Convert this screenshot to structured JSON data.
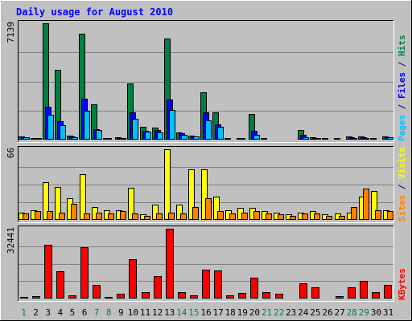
{
  "chart_data": {
    "type": "bar",
    "title": "Daily usage for August 2010",
    "categories": [
      "1",
      "2",
      "3",
      "4",
      "5",
      "6",
      "7",
      "8",
      "9",
      "10",
      "11",
      "12",
      "13",
      "14",
      "15",
      "16",
      "17",
      "18",
      "19",
      "20",
      "21",
      "22",
      "23",
      "24",
      "25",
      "26",
      "27",
      "28",
      "29",
      "30",
      "31"
    ],
    "weekend_days": [
      "1",
      "7",
      "8",
      "14",
      "15",
      "21",
      "22",
      "28",
      "29"
    ],
    "panels": [
      {
        "id": "hits-files-pages",
        "max_label": "7139",
        "ymax": 7139,
        "side_label": [
          {
            "text": "Pages",
            "color": "#00c0ff"
          },
          {
            "text": " / ",
            "color": "#000080"
          },
          {
            "text": "Files",
            "color": "#0000ff"
          },
          {
            "text": " / ",
            "color": "#000080"
          },
          {
            "text": "Hits",
            "color": "#008040"
          }
        ],
        "series": [
          {
            "name": "Hits",
            "color": "#008040",
            "values": [
              180,
              110,
              7139,
              4300,
              250,
              6480,
              2150,
              120,
              140,
              3450,
              780,
              720,
              6210,
              440,
              260,
              2890,
              1680,
              100,
              120,
              1590,
              80,
              70,
              60,
              590,
              160,
              80,
              90,
              190,
              200,
              90,
              210
            ]
          },
          {
            "name": "Files",
            "color": "#0000ff",
            "values": [
              150,
              90,
              2000,
              1130,
              180,
              2520,
              660,
              80,
              100,
              1650,
              560,
              570,
              2440,
              390,
              200,
              1680,
              950,
              70,
              90,
              520,
              50,
              50,
              40,
              280,
              110,
              60,
              70,
              140,
              150,
              70,
              170
            ]
          },
          {
            "name": "Pages",
            "color": "#00c0ff",
            "values": [
              150,
              80,
              1550,
              880,
              130,
              1760,
              570,
              60,
              80,
              1280,
              470,
              420,
              1800,
              320,
              190,
              1170,
              780,
              50,
              60,
              300,
              40,
              40,
              30,
              150,
              80,
              40,
              50,
              110,
              120,
              50,
              140
            ]
          }
        ]
      },
      {
        "id": "visits-sites",
        "max_label": "66",
        "ymax": 66,
        "side_label": [
          {
            "text": "Sites",
            "color": "#ff8000"
          },
          {
            "text": " / ",
            "color": "#000080"
          },
          {
            "text": "Visits",
            "color": "#ffff00"
          }
        ],
        "series": [
          {
            "name": "Visits",
            "color": "#ffff00",
            "values": [
              7,
              9,
              35,
              31,
              20,
              43,
              12,
              9,
              9,
              30,
              5,
              14,
              66,
              14,
              47,
              47,
              22,
              9,
              11,
              11,
              8,
              7,
              5,
              7,
              8,
              5,
              6,
              7,
              22,
              27,
              9
            ]
          },
          {
            "name": "Sites",
            "color": "#ff8000",
            "values": [
              6,
              8,
              8,
              7,
              15,
              6,
              7,
              6,
              8,
              6,
              4,
              6,
              7,
              6,
              12,
              20,
              8,
              6,
              7,
              8,
              6,
              5,
              4,
              6,
              6,
              4,
              4,
              12,
              29,
              9,
              8
            ]
          }
        ]
      },
      {
        "id": "kbytes",
        "max_label": "32441",
        "ymax": 32441,
        "side_label": [
          {
            "text": "KBytes",
            "color": "#ff0000"
          }
        ],
        "series": [
          {
            "name": "KBytes",
            "color": "#ff0000",
            "values": [
              600,
              1100,
              25000,
              12600,
              1600,
              24000,
              6300,
              800,
              2300,
              18300,
              2800,
              10600,
              32441,
              3000,
              1600,
              13500,
              13200,
              1500,
              2600,
              9800,
              3000,
              2400,
              400,
              7000,
              5400,
              400,
              1100,
              5400,
              8200,
              3000,
              6500
            ]
          }
        ]
      }
    ]
  }
}
